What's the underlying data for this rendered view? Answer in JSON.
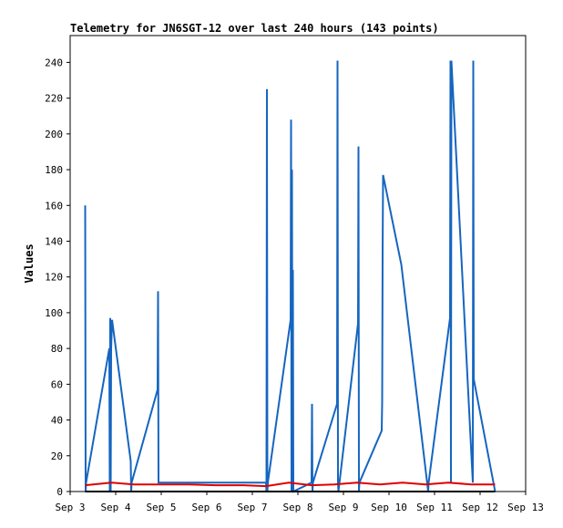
{
  "chart_data": {
    "type": "line",
    "title": "Telemetry for JN6SGT-12 over last 240 hours (143 points)",
    "xlabel": "",
    "ylabel": "Values",
    "grid": false,
    "x_ticks": [
      "Sep 3",
      "Sep 4",
      "Sep 5",
      "Sep 6",
      "Sep 7",
      "Sep 8",
      "Sep 9",
      "Sep 10",
      "Sep 11",
      "Sep 12",
      "Sep 13"
    ],
    "y_ticks": [
      0,
      20,
      40,
      60,
      80,
      100,
      120,
      140,
      160,
      180,
      200,
      220,
      240
    ],
    "xlim": [
      3.0,
      13.0
    ],
    "ylim": [
      0,
      255
    ],
    "series": [
      {
        "color": "#1565c0",
        "x": [
          3.33,
          3.34,
          3.35,
          3.86,
          3.87,
          3.88,
          3.89,
          3.9,
          3.92,
          4.33,
          4.34,
          4.35,
          4.92,
          4.93,
          4.94,
          7.3,
          7.31,
          7.32,
          7.33,
          7.34,
          7.84,
          7.85,
          7.86,
          7.87,
          7.88,
          7.89,
          7.9,
          8.3,
          8.31,
          8.32,
          8.33,
          8.86,
          8.87,
          8.88,
          8.89,
          9.32,
          9.33,
          9.34,
          9.35,
          9.84,
          9.85,
          9.86,
          9.87,
          10.27,
          10.86,
          10.87,
          11.34,
          11.35,
          11.36,
          11.37,
          11.84,
          11.85,
          11.86,
          12.33
        ],
        "y": [
          160,
          0,
          5,
          80,
          0,
          97,
          0,
          80,
          96,
          17,
          0,
          5,
          57,
          112,
          5,
          5,
          0,
          225,
          0,
          5,
          96,
          208,
          0,
          180,
          5,
          124,
          0,
          5,
          49,
          0,
          5,
          49,
          241,
          5,
          0,
          94,
          193,
          0,
          5,
          34,
          50,
          133,
          177,
          127,
          0,
          5,
          97,
          241,
          5,
          241,
          5,
          241,
          63,
          0
        ]
      },
      {
        "color": "#e00000",
        "x": [
          3.33,
          3.9,
          4.4,
          5.0,
          5.6,
          6.2,
          6.8,
          7.3,
          7.8,
          8.3,
          8.8,
          9.3,
          9.8,
          10.3,
          10.8,
          11.3,
          11.8,
          12.33
        ],
        "y": [
          3.5,
          5,
          4,
          4,
          4,
          3.5,
          3.5,
          3,
          5,
          3.5,
          4,
          5,
          4,
          5,
          4,
          5,
          4,
          4
        ]
      },
      {
        "color": "#000000",
        "x": [
          3.33,
          12.33
        ],
        "y": [
          0,
          0
        ]
      }
    ]
  }
}
